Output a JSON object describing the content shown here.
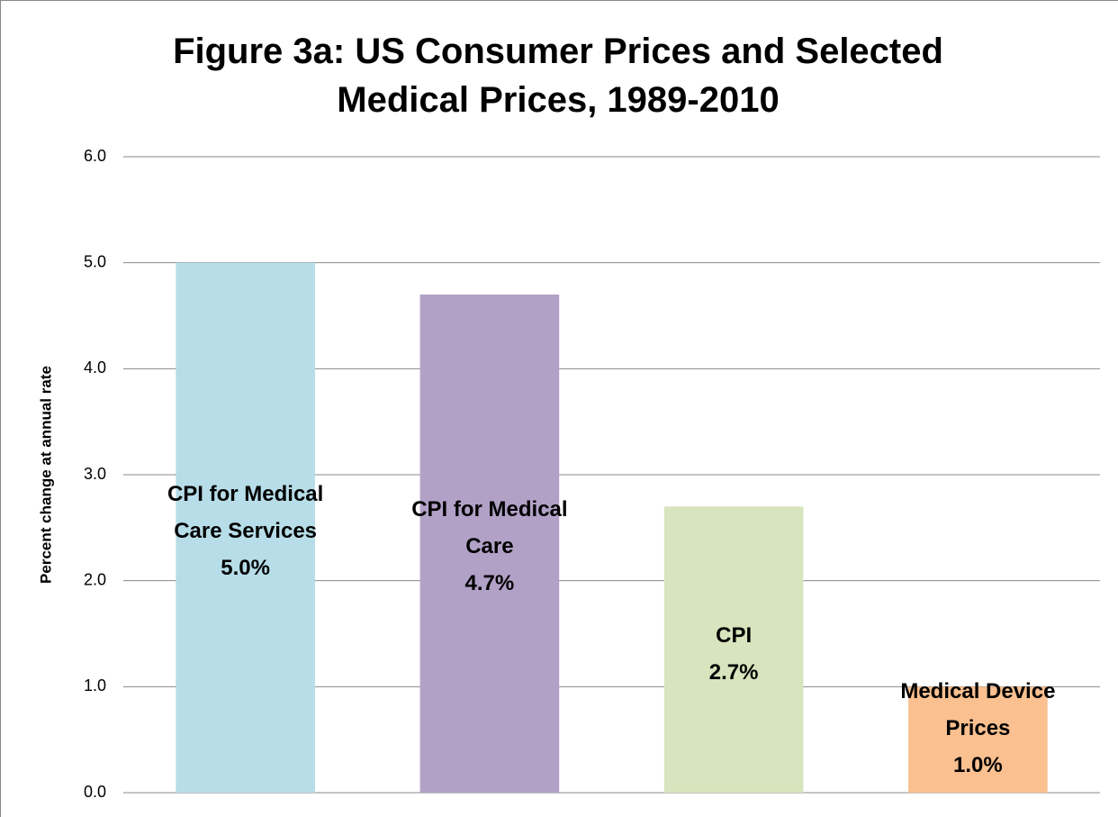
{
  "chart_data": {
    "type": "bar",
    "title": "Figure 3a: US Consumer Prices and Selected Medical Prices, 1989-2010",
    "y_label": "Percent change at annual rate",
    "categories": [
      "CPI for Medical Care Services",
      "CPI for Medical Care",
      "CPI",
      "Medical Device Prices"
    ],
    "values": [
      5.0,
      4.7,
      2.7,
      1.0
    ],
    "value_labels": [
      "5.0%",
      "4.7%",
      "2.7%",
      "1.0%"
    ],
    "colors": [
      "#b7dde8",
      "#b2a1c7",
      "#d7e4bd",
      "#fac090"
    ],
    "ylim": [
      0,
      6
    ],
    "yticks": [
      {
        "value": 0,
        "label": "0.0"
      },
      {
        "value": 1,
        "label": "1.0"
      },
      {
        "value": 2,
        "label": "2.0"
      },
      {
        "value": 3,
        "label": "3.0"
      },
      {
        "value": 4,
        "label": "4.0"
      },
      {
        "value": 5,
        "label": "5.0"
      },
      {
        "value": 6,
        "label": "6.0"
      }
    ],
    "grid": true
  }
}
